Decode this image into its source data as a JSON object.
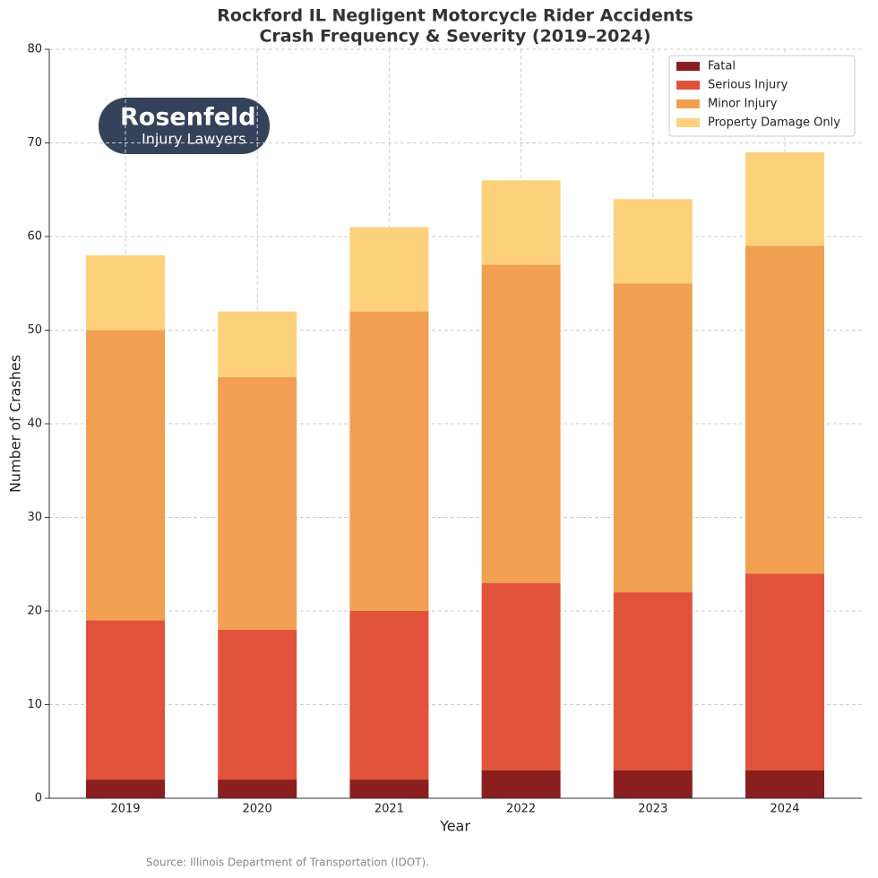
{
  "chart_data": {
    "type": "stacked_bar",
    "title": "Rockford IL Negligent Motorcycle Rider Accidents",
    "subtitle": "Crash Frequency & Severity (2019–2024)",
    "x_label": "Year",
    "y_label": "Number of Crashes",
    "categories": [
      "2019",
      "2020",
      "2021",
      "2022",
      "2023",
      "2024"
    ],
    "series": [
      {
        "name": "Fatal",
        "color": "#8b1e1e",
        "values": [
          2,
          2,
          2,
          3,
          3,
          3
        ]
      },
      {
        "name": "Serious Injury",
        "color": "#e0533a",
        "values": [
          17,
          16,
          18,
          20,
          19,
          21
        ]
      },
      {
        "name": "Minor Injury",
        "color": "#f0a050",
        "values": [
          31,
          27,
          32,
          34,
          33,
          35
        ]
      },
      {
        "name": "Property Damage Only",
        "color": "#fdd17c",
        "values": [
          8,
          7,
          9,
          9,
          9,
          10
        ]
      }
    ],
    "ylim": [
      0,
      80
    ],
    "yticks": [
      0,
      10,
      20,
      30,
      40,
      50,
      60,
      70,
      80
    ],
    "grid": true,
    "legend": "upper right",
    "logo": {
      "name": "Rosenfeld",
      "tagline": "Injury Lawyers"
    },
    "source": "Source: Illinois Department of Transportation (IDOT)."
  }
}
